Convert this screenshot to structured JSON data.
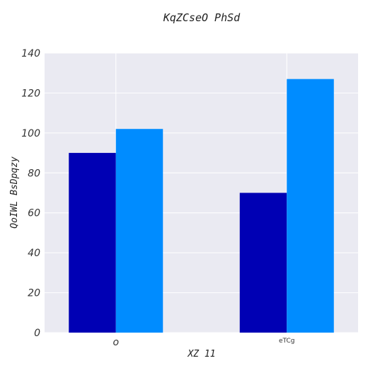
{
  "chart_data": {
    "type": "bar",
    "title": "KqZCseO PhSd",
    "xlabel": "XZ 11",
    "ylabel": "QoIWL BsDpqzy",
    "categories": [
      "o",
      "eTCg"
    ],
    "series": [
      {
        "values": [
          90,
          70
        ],
        "color": "#0000b4"
      },
      {
        "values": [
          102,
          127
        ],
        "color": "#008cff"
      }
    ],
    "ylim": [
      0,
      140
    ],
    "yticks": [
      "0",
      "20",
      "40",
      "60",
      "80",
      "100",
      "120",
      "140"
    ],
    "grid": true,
    "background_color": "#eaeaf2",
    "grid_color": "#ffffff"
  }
}
